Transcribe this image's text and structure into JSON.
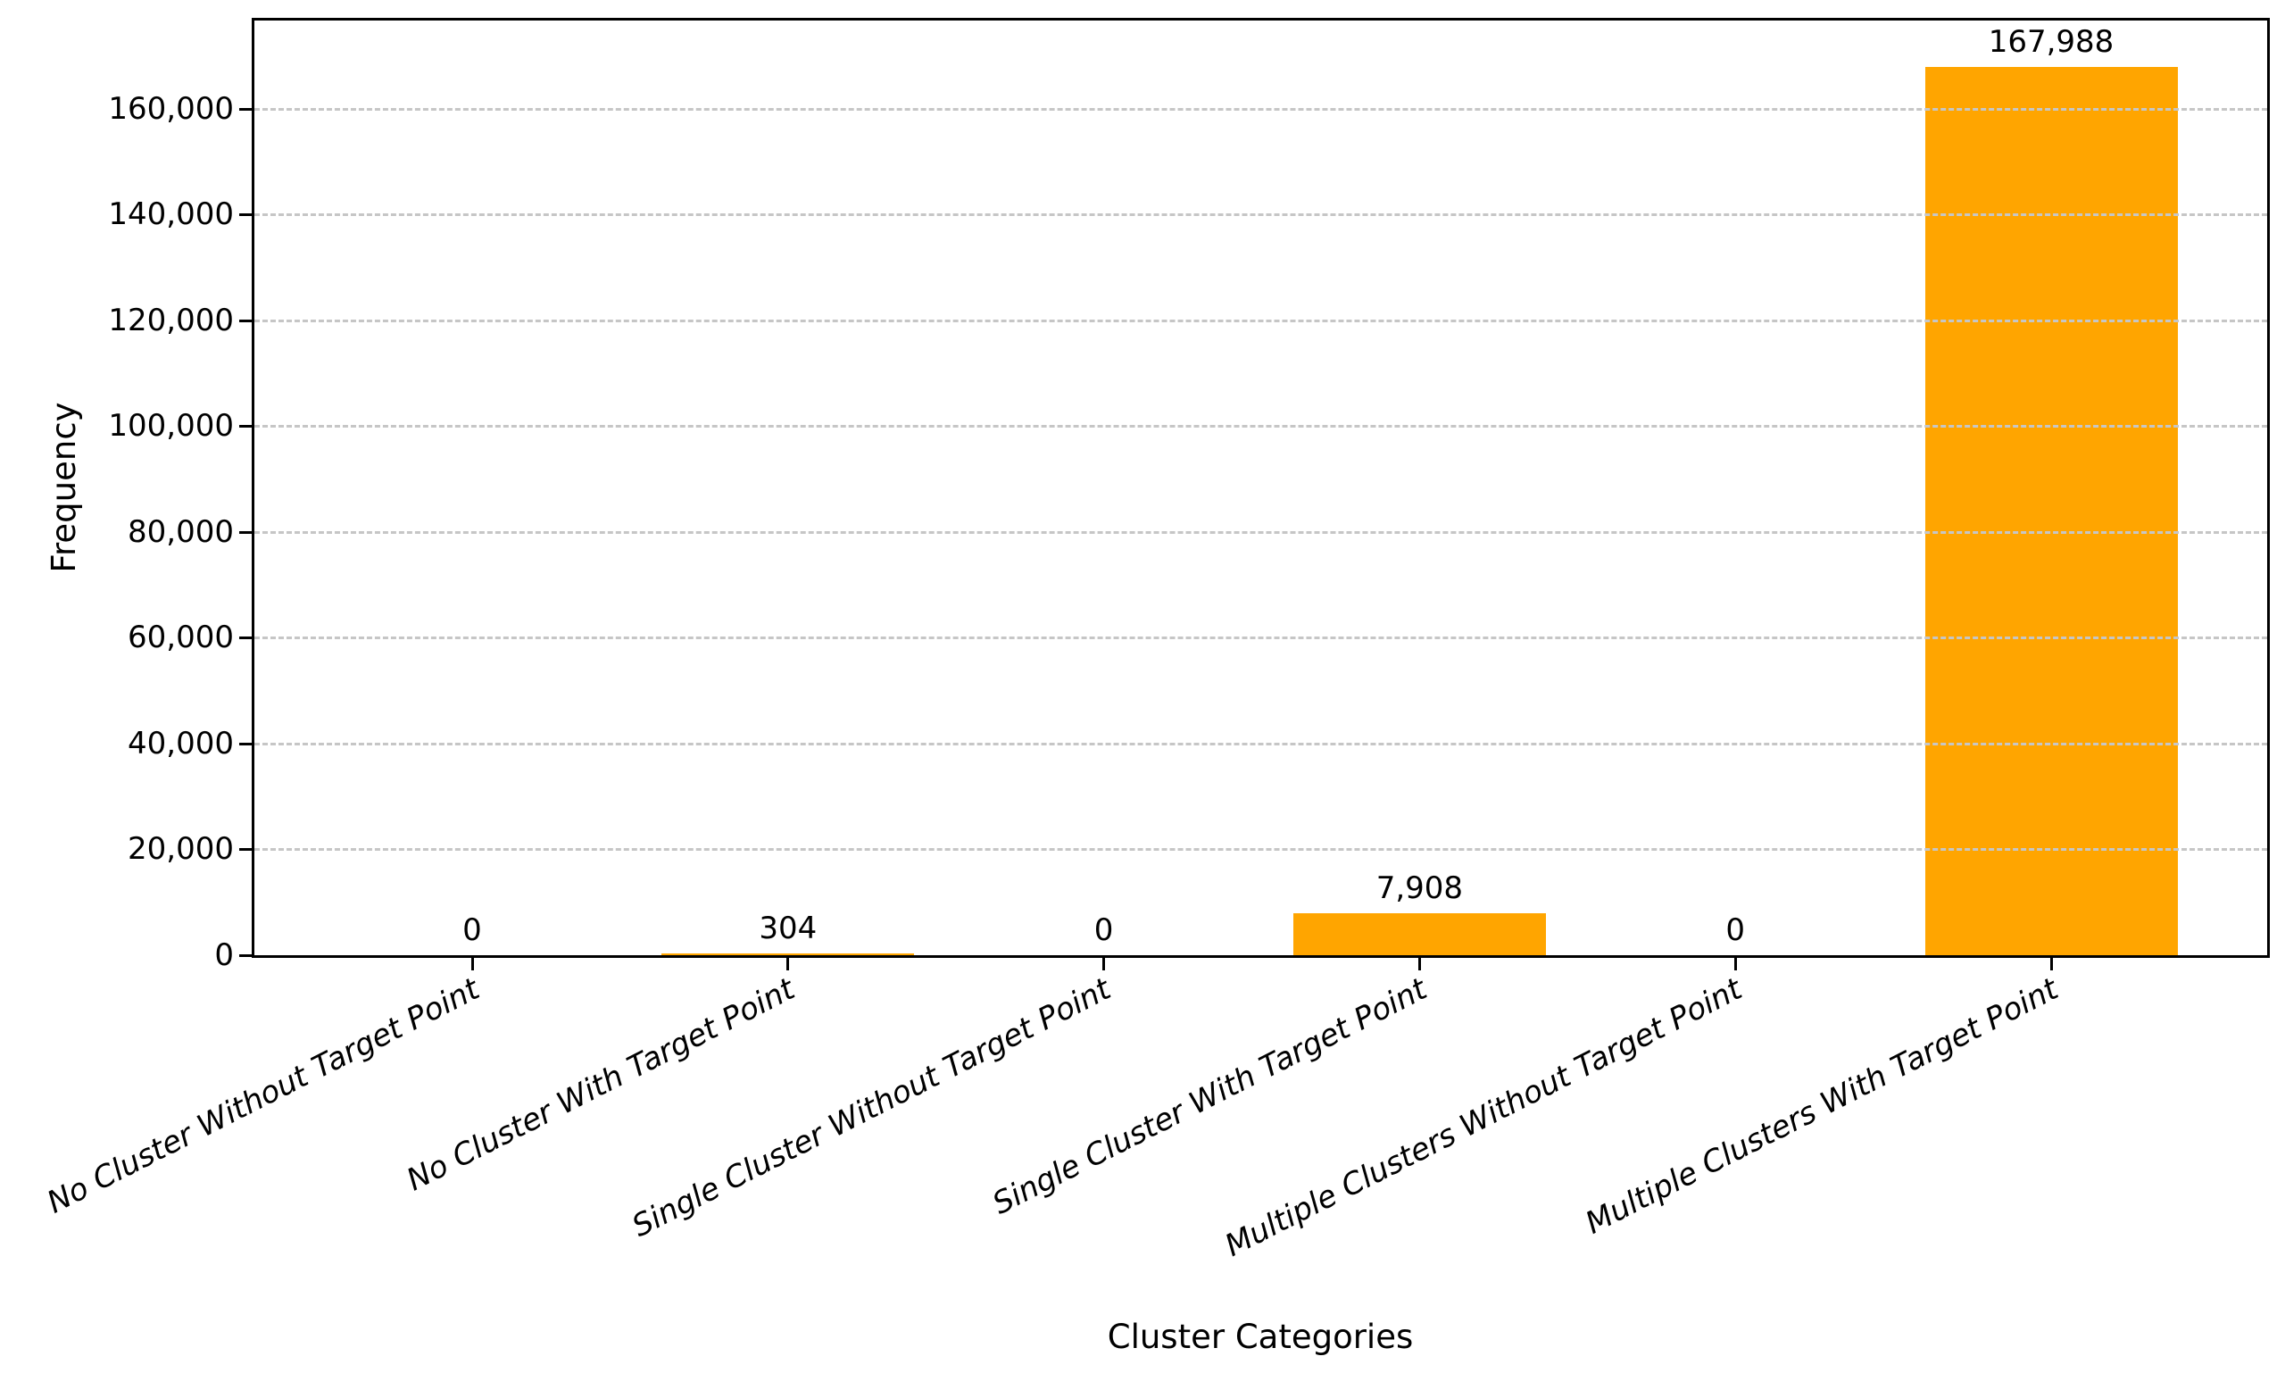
{
  "chart_data": {
    "type": "bar",
    "title": "",
    "xlabel": "Cluster Categories",
    "ylabel": "Frequency",
    "categories": [
      "No Cluster Without Target Point",
      "No Cluster With Target Point",
      "Single Cluster Without Target Point",
      "Single Cluster With Target Point",
      "Multiple Clusters Without Target Point",
      "Multiple Clusters With Target Point"
    ],
    "values": [
      0,
      304,
      0,
      7908,
      0,
      167988
    ],
    "value_labels": [
      "0",
      "304",
      "0",
      "7,908",
      "0",
      "167,988"
    ],
    "bar_color": "#FFA500",
    "ylim": [
      0,
      176700
    ],
    "yticks": [
      {
        "value": 0,
        "label": "0"
      },
      {
        "value": 20000,
        "label": "20,000"
      },
      {
        "value": 40000,
        "label": "40,000"
      },
      {
        "value": 60000,
        "label": "60,000"
      },
      {
        "value": 80000,
        "label": "80,000"
      },
      {
        "value": 100000,
        "label": "100,000"
      },
      {
        "value": 120000,
        "label": "120,000"
      },
      {
        "value": 140000,
        "label": "140,000"
      },
      {
        "value": 160000,
        "label": "160,000"
      }
    ],
    "grid": "horizontal-dashed",
    "grid_color": "#c6c6c6",
    "legend": "none",
    "tick_label_style": "italic-rotated"
  }
}
